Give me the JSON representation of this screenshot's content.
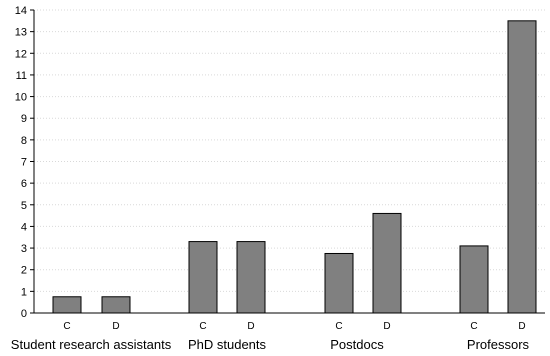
{
  "chart_data": {
    "type": "bar",
    "title": "",
    "xlabel": "",
    "ylabel": "",
    "ylim": [
      0,
      14
    ],
    "yticks": [
      0,
      1,
      2,
      3,
      4,
      5,
      6,
      7,
      8,
      9,
      10,
      11,
      12,
      13,
      14
    ],
    "grid": true,
    "legend": "none",
    "bar_color": "#808080",
    "groups": [
      {
        "name": "Student research assistants",
        "bars": [
          {
            "category": "C",
            "value": 0.75
          },
          {
            "category": "D",
            "value": 0.75
          }
        ]
      },
      {
        "name": "PhD students",
        "bars": [
          {
            "category": "C",
            "value": 3.3
          },
          {
            "category": "D",
            "value": 3.3
          }
        ]
      },
      {
        "name": "Postdocs",
        "bars": [
          {
            "category": "C",
            "value": 2.75
          },
          {
            "category": "D",
            "value": 4.6
          }
        ]
      },
      {
        "name": "Professors",
        "bars": [
          {
            "category": "C",
            "value": 3.1
          },
          {
            "category": "D",
            "value": 13.5
          }
        ]
      }
    ]
  }
}
